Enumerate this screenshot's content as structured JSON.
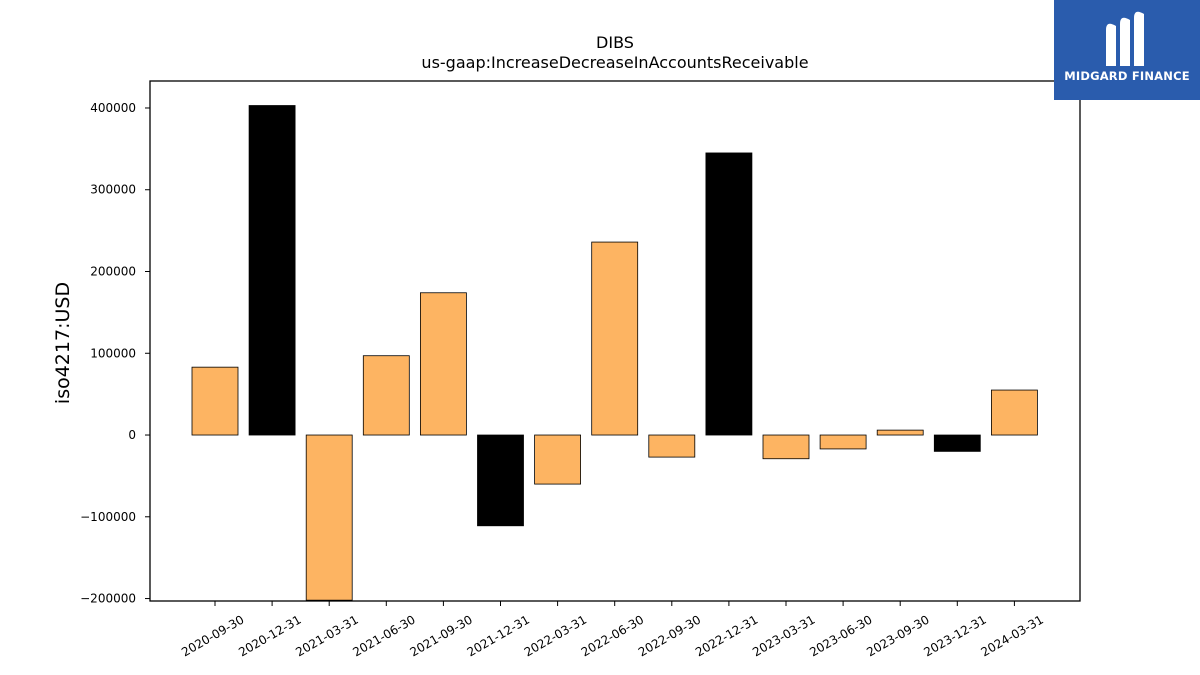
{
  "chart_data": {
    "type": "bar",
    "title": "DIBS",
    "subtitle": "us-gaap:IncreaseDecreaseInAccountsReceivable",
    "ylabel": "iso4217:USD",
    "xlabel": "",
    "ylim": [
      -203000,
      433000
    ],
    "yticks": [
      -200000,
      -100000,
      0,
      100000,
      200000,
      300000,
      400000
    ],
    "grid": false,
    "categories": [
      "2020-09-30",
      "2020-12-31",
      "2021-03-31",
      "2021-06-30",
      "2021-09-30",
      "2021-12-31",
      "2022-03-31",
      "2022-06-30",
      "2022-09-30",
      "2022-12-31",
      "2023-03-31",
      "2023-06-30",
      "2023-09-30",
      "2023-12-31",
      "2024-03-31"
    ],
    "values": [
      83000,
      403000,
      -202000,
      97000,
      174000,
      -111000,
      -60000,
      236000,
      -27000,
      345000,
      -29000,
      -17000,
      6000,
      -20000,
      55000
    ],
    "colors": [
      "#fdb462",
      "#000000",
      "#fdb462",
      "#fdb462",
      "#fdb462",
      "#000000",
      "#fdb462",
      "#fdb462",
      "#fdb462",
      "#000000",
      "#fdb462",
      "#fdb462",
      "#fdb462",
      "#000000",
      "#fdb462"
    ]
  },
  "logo": {
    "text": "MIDGARD FINANCE",
    "color": "#2a5cad"
  }
}
